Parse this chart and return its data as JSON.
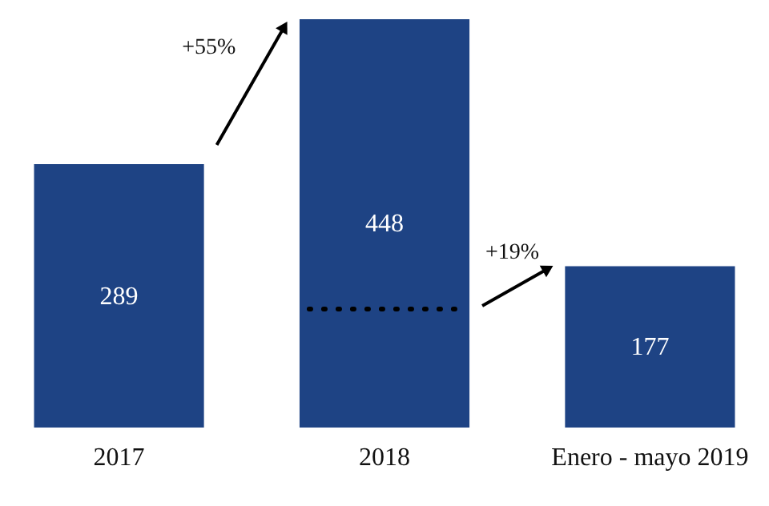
{
  "chart_data": {
    "type": "bar",
    "categories": [
      "2017",
      "2018",
      "Enero - mayo 2019"
    ],
    "values": [
      289,
      448,
      177
    ],
    "color": "#1e4384",
    "data_labels": true,
    "tick_labels": "x",
    "ref_lines": [
      {
        "axis": "y",
        "value": 130,
        "line_style": "dotted",
        "color": "#000000"
      }
    ],
    "annotations": [
      "+55%",
      "+19%"
    ]
  }
}
